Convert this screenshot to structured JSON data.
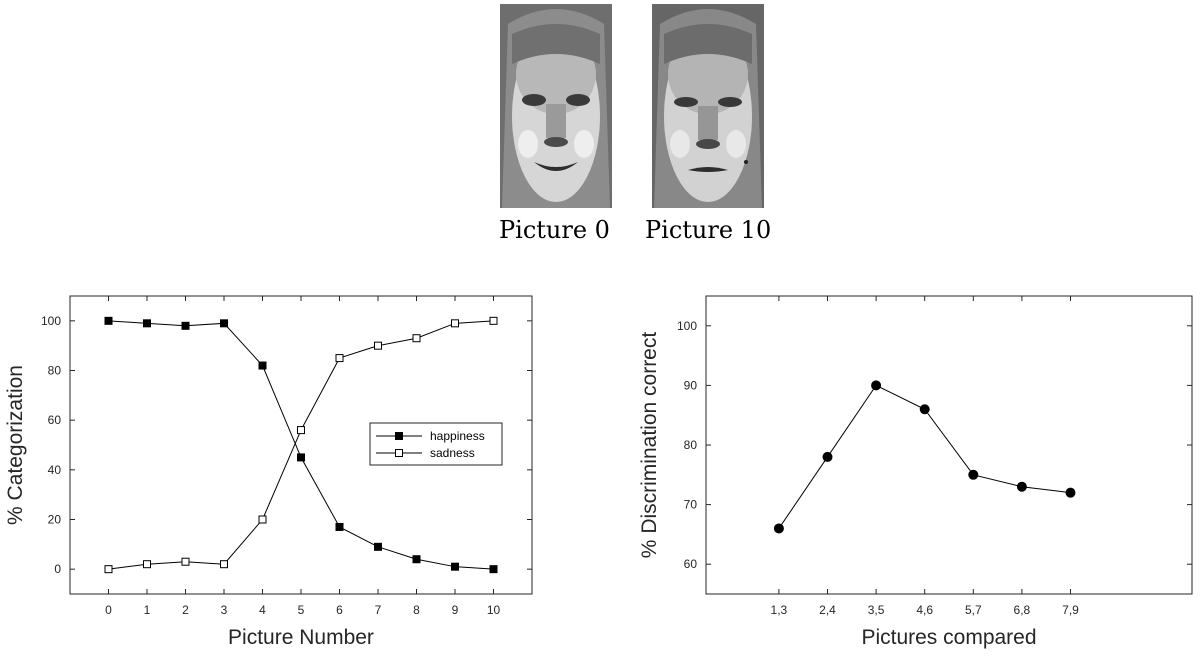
{
  "faces": [
    {
      "caption": "Picture 0",
      "image": "face-photo-happy"
    },
    {
      "caption": "Picture 10",
      "image": "face-photo-sad"
    }
  ],
  "chart_data": [
    {
      "type": "line",
      "x": [
        0,
        1,
        2,
        3,
        4,
        5,
        6,
        7,
        8,
        9,
        10
      ],
      "xticks": [
        "0",
        "1",
        "2",
        "3",
        "4",
        "5",
        "6",
        "7",
        "8",
        "9",
        "10"
      ],
      "xlim": [
        -1,
        11
      ],
      "ylim": [
        -10,
        110
      ],
      "yticks": [
        0,
        20,
        40,
        60,
        80,
        100
      ],
      "xlabel": "Picture Number",
      "ylabel": "% Categorization",
      "legend": "center-right",
      "grid": false,
      "series": [
        {
          "name": "happiness",
          "marker": "filled-square",
          "color": "#000000",
          "values": [
            100,
            99,
            98,
            99,
            82,
            45,
            17,
            9,
            4,
            1,
            0
          ]
        },
        {
          "name": "sadness",
          "marker": "open-square",
          "color": "#000000",
          "values": [
            0,
            2,
            3,
            2,
            20,
            56,
            85,
            90,
            93,
            99,
            100
          ]
        }
      ]
    },
    {
      "type": "line",
      "categories": [
        "1,3",
        "2,4",
        "3,5",
        "4,6",
        "5,7",
        "6,8",
        "7,9"
      ],
      "xlim": [
        -1.5,
        8.5
      ],
      "ylim": [
        55,
        105
      ],
      "yticks": [
        60,
        70,
        80,
        90,
        100
      ],
      "xlabel": "Pictures compared",
      "ylabel": "% Discrimination correct",
      "grid": false,
      "series": [
        {
          "marker": "filled-circle",
          "color": "#000000",
          "values": [
            66,
            78,
            90,
            86,
            75,
            73,
            72
          ]
        }
      ]
    }
  ]
}
